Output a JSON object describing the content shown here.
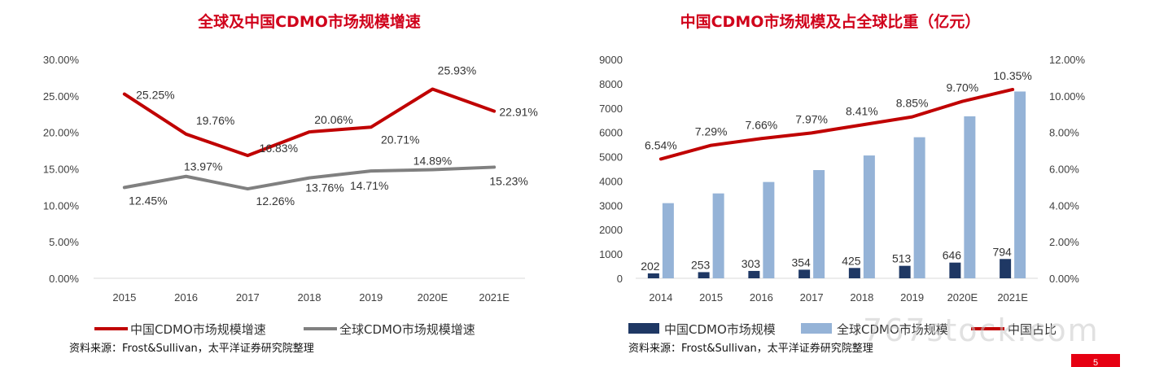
{
  "chart_data": [
    {
      "type": "line",
      "title": "全球及中国CDMO市场规模增速",
      "categories": [
        "2015",
        "2016",
        "2017",
        "2018",
        "2019",
        "2020E",
        "2021E"
      ],
      "series": [
        {
          "name": "中国CDMO市场规模增速",
          "color": "#c00000",
          "values": [
            25.25,
            19.76,
            16.83,
            20.06,
            20.71,
            25.93,
            22.91
          ],
          "labels": [
            "25.25%",
            "19.76%",
            "16.83%",
            "20.06%",
            "20.71%",
            "25.93%",
            "22.91%"
          ]
        },
        {
          "name": "全球CDMO市场规模增速",
          "color": "#808080",
          "values": [
            12.45,
            13.97,
            12.26,
            13.76,
            14.71,
            14.89,
            15.23
          ],
          "labels": [
            "12.45%",
            "13.97%",
            "12.26%",
            "13.76%",
            "14.71%",
            "14.89%",
            "15.23%"
          ]
        }
      ],
      "ylim": [
        0,
        30
      ],
      "yticks": [
        "0.00%",
        "5.00%",
        "10.00%",
        "15.00%",
        "20.00%",
        "25.00%",
        "30.00%"
      ],
      "source": "资料来源：Frost&Sullivan，太平洋证券研究院整理"
    },
    {
      "type": "bar",
      "title": "中国CDMO市场规模及占全球比重（亿元）",
      "categories": [
        "2014",
        "2015",
        "2016",
        "2017",
        "2018",
        "2019",
        "2020E",
        "2021E"
      ],
      "series": [
        {
          "name": "中国CDMO市场规模",
          "color": "#1f3864",
          "axis": "left",
          "values": [
            202,
            253,
            303,
            354,
            425,
            513,
            646,
            794
          ],
          "labels": [
            "202",
            "253",
            "303",
            "354",
            "425",
            "513",
            "646",
            "794"
          ]
        },
        {
          "name": "全球CDMO市场规模",
          "color": "#95b3d7",
          "axis": "left",
          "values": [
            3090,
            3490,
            3960,
            4450,
            5050,
            5800,
            6660,
            7680
          ]
        },
        {
          "name": "中国占比",
          "color": "#c00000",
          "axis": "right",
          "type": "line",
          "values": [
            6.54,
            7.29,
            7.66,
            7.97,
            8.41,
            8.85,
            9.7,
            10.35
          ],
          "labels": [
            "6.54%",
            "7.29%",
            "7.66%",
            "7.97%",
            "8.41%",
            "8.85%",
            "9.70%",
            "10.35%"
          ]
        }
      ],
      "ylim_left": [
        0,
        9000
      ],
      "yticks_left": [
        "0",
        "1000",
        "2000",
        "3000",
        "4000",
        "5000",
        "6000",
        "7000",
        "8000",
        "9000"
      ],
      "ylim_right": [
        0,
        12
      ],
      "yticks_right": [
        "0.00%",
        "2.00%",
        "4.00%",
        "6.00%",
        "8.00%",
        "10.00%",
        "12.00%"
      ],
      "source": "资料来源：Frost&Sullivan，太平洋证券研究院整理"
    }
  ],
  "watermark": "767stock.com",
  "page_number": "5",
  "accent_color": "#e60012"
}
